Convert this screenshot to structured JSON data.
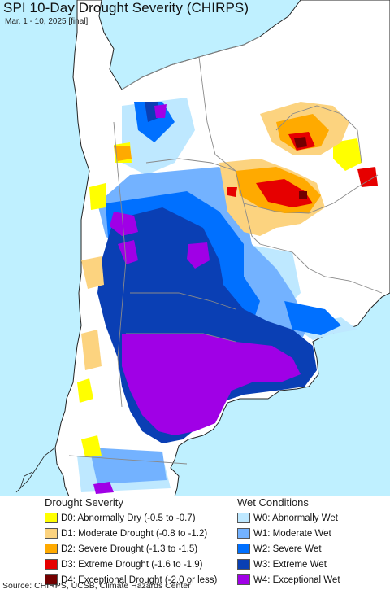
{
  "title": "SPI 10-Day Drought Severity (CHIRPS)",
  "subtitle": "Mar. 1 - 10, 2025 [final]",
  "legend": {
    "drought": {
      "heading": "Drought Severity",
      "items": [
        {
          "label": "D0: Abnormally Dry (-0.5 to -0.7)",
          "color": "#ffff00"
        },
        {
          "label": "D1: Moderate Drought (-0.8 to -1.2)",
          "color": "#fcd37f"
        },
        {
          "label": "D2: Severe Drought (-1.3 to -1.5)",
          "color": "#ffaa00"
        },
        {
          "label": "D3: Extreme Drought (-1.6 to -1.9)",
          "color": "#e60000"
        },
        {
          "label": "D4: Exceptional Drought (-2.0 or less)",
          "color": "#730000"
        }
      ]
    },
    "wet": {
      "heading": "Wet Conditions",
      "items": [
        {
          "label": "W0: Abnormally Wet",
          "color": "#bee8ff"
        },
        {
          "label": "W1: Moderate Wet",
          "color": "#73b2ff"
        },
        {
          "label": "W2: Severe Wet",
          "color": "#0070ff"
        },
        {
          "label": "W3: Extreme Wet",
          "color": "#0a3fb4"
        },
        {
          "label": "W4: Exceptional Wet",
          "color": "#a000e6"
        }
      ]
    }
  },
  "colors": {
    "ocean": "#bff0ff",
    "land": "#ffffff",
    "border": "#8a8a8a",
    "coast": "#222222"
  },
  "footer": "Source: CHIRPS, UCSB, Climate Hazards Center"
}
